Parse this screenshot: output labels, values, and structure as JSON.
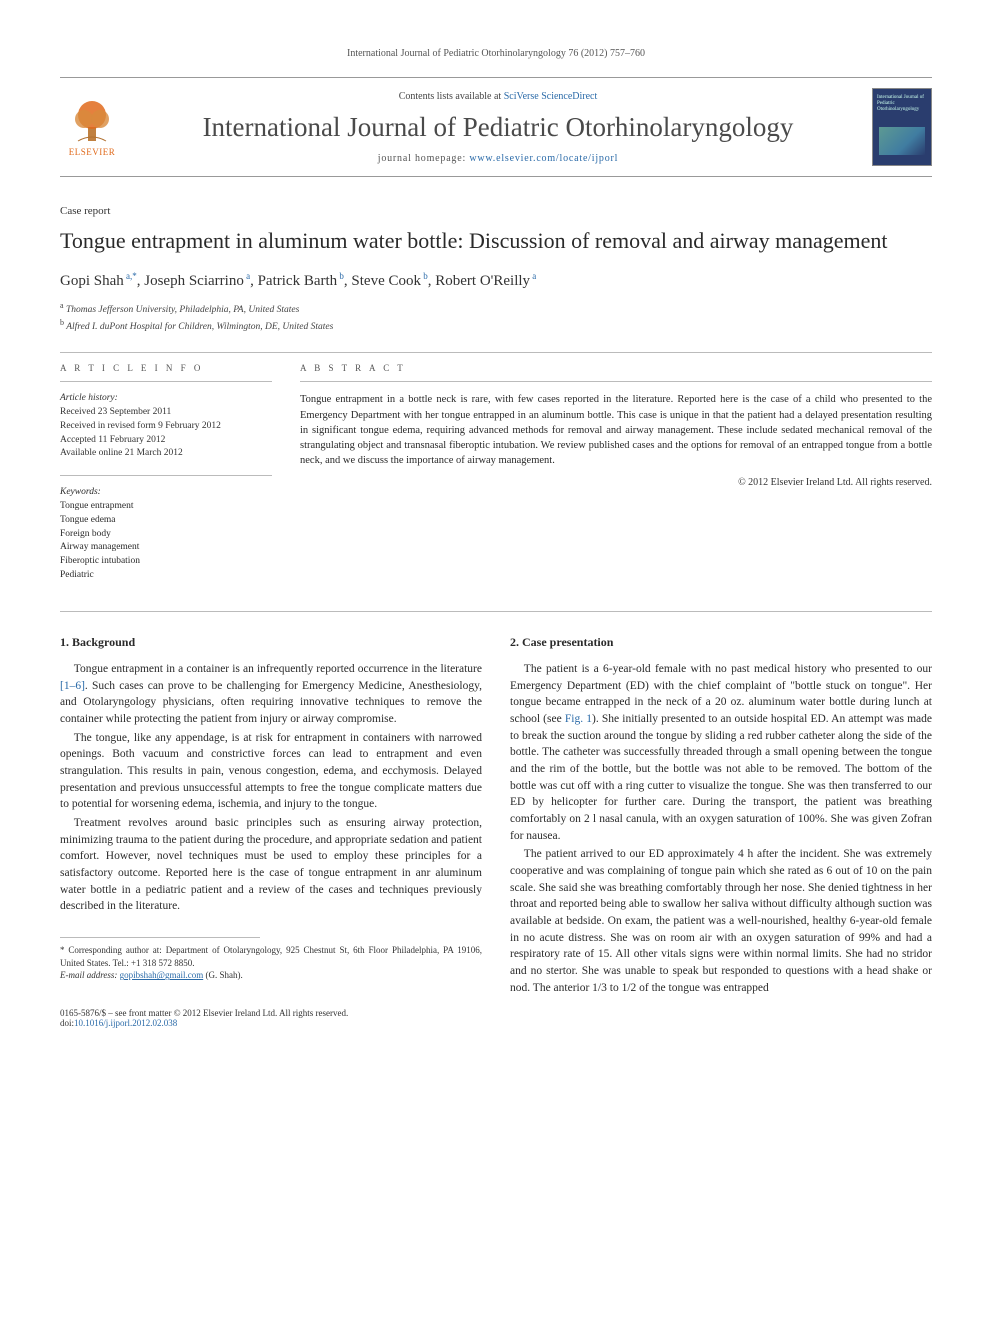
{
  "running_head": "International Journal of Pediatric Otorhinolaryngology 76 (2012) 757–760",
  "masthead": {
    "contents_prefix": "Contents lists available at ",
    "contents_link": "SciVerse ScienceDirect",
    "journal_title": "International Journal of Pediatric Otorhinolaryngology",
    "homepage_prefix": "journal homepage: ",
    "homepage_url": "www.elsevier.com/locate/ijporl",
    "publisher": "ELSEVIER",
    "cover_label": "International Journal of Pediatric Otorhinolaryngology"
  },
  "article": {
    "type": "Case report",
    "title": "Tongue entrapment in aluminum water bottle: Discussion of removal and airway management",
    "authors_html": "Gopi Shah",
    "authors": [
      {
        "name": "Gopi Shah",
        "aff": "a",
        "corr": true
      },
      {
        "name": "Joseph Sciarrino",
        "aff": "a",
        "corr": false
      },
      {
        "name": "Patrick Barth",
        "aff": "b",
        "corr": false
      },
      {
        "name": "Steve Cook",
        "aff": "b",
        "corr": false
      },
      {
        "name": "Robert O'Reilly",
        "aff": "a",
        "corr": false
      }
    ],
    "affiliations": [
      {
        "sup": "a",
        "text": "Thomas Jefferson University, Philadelphia, PA, United States"
      },
      {
        "sup": "b",
        "text": "Alfred I. duPont Hospital for Children, Wilmington, DE, United States"
      }
    ]
  },
  "article_info": {
    "heading": "A R T I C L E   I N F O",
    "history_label": "Article history:",
    "history": [
      "Received 23 September 2011",
      "Received in revised form 9 February 2012",
      "Accepted 11 February 2012",
      "Available online 21 March 2012"
    ],
    "keywords_label": "Keywords:",
    "keywords": [
      "Tongue entrapment",
      "Tongue edema",
      "Foreign body",
      "Airway management",
      "Fiberoptic intubation",
      "Pediatric"
    ]
  },
  "abstract": {
    "heading": "A B S T R A C T",
    "text": "Tongue entrapment in a bottle neck is rare, with few cases reported in the literature. Reported here is the case of a child who presented to the Emergency Department with her tongue entrapped in an aluminum bottle. This case is unique in that the patient had a delayed presentation resulting in significant tongue edema, requiring advanced methods for removal and airway management. These include sedated mechanical removal of the strangulating object and transnasal fiberoptic intubation. We review published cases and the options for removal of an entrapped tongue from a bottle neck, and we discuss the importance of airway management.",
    "copyright": "© 2012 Elsevier Ireland Ltd. All rights reserved."
  },
  "sections": {
    "s1": {
      "heading": "1. Background",
      "paras": [
        "Tongue entrapment in a container is an infrequently reported occurrence in the literature [1–6]. Such cases can prove to be challenging for Emergency Medicine, Anesthesiology, and Otolaryngology physicians, often requiring innovative techniques to remove the container while protecting the patient from injury or airway compromise.",
        "The tongue, like any appendage, is at risk for entrapment in containers with narrowed openings. Both vacuum and constrictive forces can lead to entrapment and even strangulation. This results in pain, venous congestion, edema, and ecchymosis. Delayed presentation and previous unsuccessful attempts to free the tongue complicate matters due to potential for worsening edema, ischemia, and injury to the tongue.",
        "Treatment revolves around basic principles such as ensuring airway protection, minimizing trauma to the patient during the procedure, and appropriate sedation and patient comfort. However, novel techniques must be used to employ these principles for a satisfactory outcome. Reported here is the case of tongue entrapment in anr aluminum water bottle in a pediatric patient and a review of the cases and techniques previously described in the literature."
      ]
    },
    "s2": {
      "heading": "2. Case presentation",
      "paras": [
        "The patient is a 6-year-old female with no past medical history who presented to our Emergency Department (ED) with the chief complaint of \"bottle stuck on tongue\". Her tongue became entrapped in the neck of a 20 oz. aluminum water bottle during lunch at school (see Fig. 1). She initially presented to an outside hospital ED. An attempt was made to break the suction around the tongue by sliding a red rubber catheter along the side of the bottle. The catheter was successfully threaded through a small opening between the tongue and the rim of the bottle, but the bottle was not able to be removed. The bottom of the bottle was cut off with a ring cutter to visualize the tongue. She was then transferred to our ED by helicopter for further care. During the transport, the patient was breathing comfortably on 2 l nasal canula, with an oxygen saturation of 100%. She was given Zofran for nausea.",
        "The patient arrived to our ED approximately 4 h after the incident. She was extremely cooperative and was complaining of tongue pain which she rated as 6 out of 10 on the pain scale. She said she was breathing comfortably through her nose. She denied tightness in her throat and reported being able to swallow her saliva without difficulty although suction was available at bedside. On exam, the patient was a well-nourished, healthy 6-year-old female in no acute distress. She was on room air with an oxygen saturation of 99% and had a respiratory rate of 15. All other vitals signs were within normal limits. She had no stridor and no stertor. She was unable to speak but responded to questions with a head shake or nod. The anterior 1/3 to 1/2 of the tongue was entrapped"
      ]
    }
  },
  "footnotes": {
    "corr_label": "* Corresponding author at: ",
    "corr_text": "Department of Otolaryngology, 925 Chestnut St, 6th Floor Philadelphia, PA 19106, United States. Tel.: +1 318 572 8850.",
    "email_label": "E-mail address: ",
    "email": "gopibshah@gmail.com",
    "email_suffix": " (G. Shah)."
  },
  "doi": {
    "issn_line": "0165-5876/$ – see front matter © 2012 Elsevier Ireland Ltd. All rights reserved.",
    "doi_prefix": "doi:",
    "doi": "10.1016/j.ijporl.2012.02.038"
  },
  "colors": {
    "link": "#2a6aa8",
    "elsevier": "#e06a1c",
    "rule": "#bbbbbb",
    "text": "#2a2a2a"
  }
}
